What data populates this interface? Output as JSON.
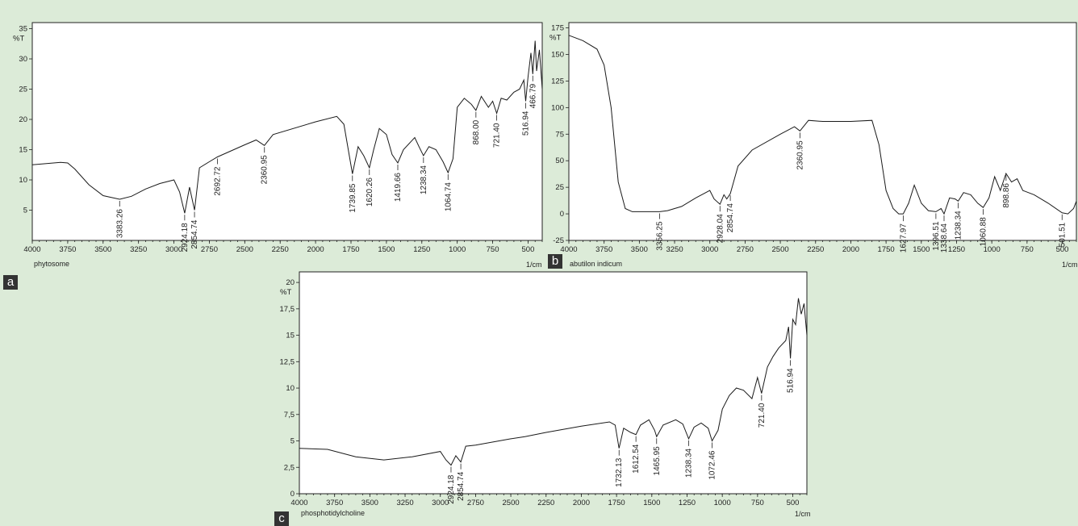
{
  "chart_data": [
    {
      "panel_label": "a",
      "type": "line",
      "ylabel": "%T",
      "xunit": "1/cm",
      "caption": "phytosome",
      "xlim": [
        4000,
        400
      ],
      "ylim": [
        0,
        36
      ],
      "xticks": [
        4000,
        3750,
        3500,
        3250,
        3000,
        2750,
        2500,
        2250,
        2000,
        1750,
        1500,
        1250,
        1000,
        750,
        500
      ],
      "yticks": [
        5,
        10,
        15,
        20,
        25,
        30,
        35
      ],
      "x": [
        4000,
        3800,
        3750,
        3700,
        3600,
        3500,
        3383.26,
        3300,
        3200,
        3100,
        3000,
        2960,
        2924.18,
        2890,
        2854.74,
        2820,
        2750,
        2692.72,
        2500,
        2420,
        2360.95,
        2300,
        2000,
        1850,
        1800,
        1739.85,
        1700,
        1660,
        1620.26,
        1590,
        1550,
        1500,
        1460,
        1419.66,
        1380,
        1300,
        1270,
        1238.34,
        1200,
        1150,
        1100,
        1064.74,
        1030,
        1000,
        950,
        900,
        868.0,
        830,
        780,
        750,
        721.4,
        690,
        650,
        600,
        560,
        530,
        516.94,
        500,
        480,
        466.79,
        450,
        440,
        420,
        400
      ],
      "y": [
        12.5,
        12.9,
        12.8,
        11.8,
        9.2,
        7.4,
        6.8,
        7.3,
        8.5,
        9.4,
        10.0,
        8.0,
        4.5,
        8.8,
        5.0,
        12.0,
        13.0,
        13.8,
        15.8,
        16.6,
        15.7,
        17.5,
        19.6,
        20.5,
        19.2,
        11.0,
        15.5,
        14.0,
        12.0,
        15.0,
        18.5,
        17.5,
        14.2,
        12.8,
        15.0,
        17.0,
        15.5,
        14.0,
        15.5,
        15.0,
        13.0,
        11.2,
        13.5,
        22.0,
        23.5,
        22.5,
        21.5,
        23.8,
        22.0,
        23.0,
        21.0,
        23.5,
        23.2,
        24.5,
        25.0,
        26.5,
        23.0,
        27.0,
        31.0,
        27.5,
        33.0,
        28.0,
        31.5,
        25.0
      ],
      "peaks": [
        {
          "label": "3383.26",
          "x": 3383.26,
          "y": 6.8
        },
        {
          "label": "2924.18",
          "x": 2924.18,
          "y": 4.5
        },
        {
          "label": "2854.74",
          "x": 2854.74,
          "y": 5.0
        },
        {
          "label": "2692.72",
          "x": 2692.72,
          "y": 13.8
        },
        {
          "label": "2360.95",
          "x": 2360.95,
          "y": 15.7
        },
        {
          "label": "1739.85",
          "x": 1739.85,
          "y": 11.0
        },
        {
          "label": "1620.26",
          "x": 1620.26,
          "y": 12.0
        },
        {
          "label": "1419.66",
          "x": 1419.66,
          "y": 12.8
        },
        {
          "label": "1238.34",
          "x": 1238.34,
          "y": 14.0
        },
        {
          "label": "1064.74",
          "x": 1064.74,
          "y": 11.2
        },
        {
          "label": "868.00",
          "x": 868.0,
          "y": 21.5
        },
        {
          "label": "721.40",
          "x": 721.4,
          "y": 21.0
        },
        {
          "label": "516.94",
          "x": 516.94,
          "y": 23.0
        },
        {
          "label": "466.79",
          "x": 466.79,
          "y": 27.5
        }
      ]
    },
    {
      "panel_label": "b",
      "type": "line",
      "ylabel": "%T",
      "xunit": "1/cm",
      "caption": "abutilon indicum",
      "xlim": [
        4000,
        400
      ],
      "ylim": [
        -25,
        180
      ],
      "xticks": [
        4000,
        3750,
        3500,
        3250,
        3000,
        2750,
        2500,
        2250,
        2000,
        1750,
        1500,
        1250,
        1000,
        750,
        500
      ],
      "yticks": [
        -25,
        0,
        25,
        50,
        75,
        100,
        125,
        150,
        175
      ],
      "x": [
        4000,
        3900,
        3800,
        3750,
        3700,
        3650,
        3600,
        3550,
        3500,
        3400,
        3356.25,
        3300,
        3200,
        3100,
        3000,
        2970,
        2928.04,
        2900,
        2880,
        2854.74,
        2800,
        2700,
        2500,
        2400,
        2360.95,
        2300,
        2200,
        2000,
        1850,
        1800,
        1750,
        1700,
        1660,
        1627.97,
        1590,
        1550,
        1500,
        1450,
        1396.51,
        1360,
        1338.64,
        1300,
        1260,
        1238.34,
        1200,
        1150,
        1100,
        1060.88,
        1020,
        980,
        940,
        898.86,
        860,
        820,
        780,
        700,
        600,
        501.51,
        460,
        420,
        400
      ],
      "y": [
        168,
        163,
        155,
        140,
        100,
        30,
        5,
        2,
        2,
        2,
        2,
        3,
        7,
        15,
        22,
        14,
        9,
        18,
        14,
        19,
        45,
        60,
        75,
        82,
        78,
        88,
        87,
        87,
        88,
        65,
        22,
        5,
        0,
        0,
        10,
        27,
        10,
        3,
        2,
        5,
        0,
        15,
        14,
        12,
        20,
        18,
        10,
        6,
        15,
        35,
        22,
        38,
        30,
        33,
        22,
        18,
        10,
        1,
        0,
        5,
        12
      ],
      "peaks": [
        {
          "label": "3356.25",
          "x": 3356.25,
          "y": 2
        },
        {
          "label": "2928.04",
          "x": 2928.04,
          "y": 9
        },
        {
          "label": "2854.74",
          "x": 2854.74,
          "y": 19
        },
        {
          "label": "2360.95",
          "x": 2360.95,
          "y": 78
        },
        {
          "label": "1627.97",
          "x": 1627.97,
          "y": 0
        },
        {
          "label": "1396.51",
          "x": 1396.51,
          "y": 2
        },
        {
          "label": "1338.64",
          "x": 1338.64,
          "y": 0
        },
        {
          "label": "1238.34",
          "x": 1238.34,
          "y": 12
        },
        {
          "label": "1060.88",
          "x": 1060.88,
          "y": 6
        },
        {
          "label": "898.86",
          "x": 898.86,
          "y": 38
        },
        {
          "label": "501.51",
          "x": 501.51,
          "y": 1
        }
      ]
    },
    {
      "panel_label": "c",
      "type": "line",
      "ylabel": "%T",
      "xunit": "1/cm",
      "caption": "phosphotidylcholine",
      "xlim": [
        4000,
        400
      ],
      "ylim": [
        0,
        21
      ],
      "xticks": [
        4000,
        3750,
        3500,
        3250,
        3000,
        2750,
        2500,
        2250,
        2000,
        1750,
        1500,
        1250,
        1000,
        750,
        500
      ],
      "yticks": [
        0,
        2.5,
        5,
        7.5,
        10,
        12.5,
        15,
        17.5,
        20
      ],
      "ytick_labels": [
        "0",
        "2,5",
        "5",
        "7,5",
        "10",
        "12,5",
        "15",
        "17,5",
        "20"
      ],
      "x": [
        4000,
        3800,
        3600,
        3400,
        3200,
        3000,
        2960,
        2924.18,
        2890,
        2854.74,
        2820,
        2750,
        2500,
        2400,
        2250,
        2000,
        1800,
        1760,
        1732.13,
        1700,
        1650,
        1612.54,
        1580,
        1520,
        1480,
        1465.95,
        1420,
        1330,
        1280,
        1238.34,
        1200,
        1150,
        1100,
        1072.46,
        1030,
        1000,
        950,
        900,
        850,
        790,
        750,
        721.4,
        680,
        640,
        600,
        550,
        530,
        516.94,
        500,
        480,
        460,
        440,
        420,
        400
      ],
      "y": [
        4.3,
        4.2,
        3.5,
        3.2,
        3.5,
        4.0,
        3.2,
        2.7,
        3.6,
        3.0,
        4.5,
        4.6,
        5.2,
        5.4,
        5.8,
        6.4,
        6.8,
        6.5,
        4.3,
        6.2,
        5.8,
        5.6,
        6.5,
        7.0,
        6.0,
        5.4,
        6.5,
        7.0,
        6.6,
        5.2,
        6.3,
        6.7,
        6.2,
        5.0,
        6.0,
        8.0,
        9.3,
        10.0,
        9.8,
        9.0,
        11.0,
        9.5,
        12.0,
        13.0,
        13.8,
        14.5,
        15.8,
        12.8,
        16.5,
        16.0,
        18.5,
        17.0,
        18.0,
        15.0
      ],
      "peaks": [
        {
          "label": "2924.18",
          "x": 2924.18,
          "y": 2.7
        },
        {
          "label": "2854.74",
          "x": 2854.74,
          "y": 3.0
        },
        {
          "label": "1732.13",
          "x": 1732.13,
          "y": 4.3
        },
        {
          "label": "1612.54",
          "x": 1612.54,
          "y": 5.6
        },
        {
          "label": "1465.95",
          "x": 1465.95,
          "y": 5.4
        },
        {
          "label": "1238.34",
          "x": 1238.34,
          "y": 5.2
        },
        {
          "label": "1072.46",
          "x": 1072.46,
          "y": 5.0
        },
        {
          "label": "721.40",
          "x": 721.4,
          "y": 9.5
        },
        {
          "label": "516.94",
          "x": 516.94,
          "y": 12.8
        }
      ]
    }
  ]
}
